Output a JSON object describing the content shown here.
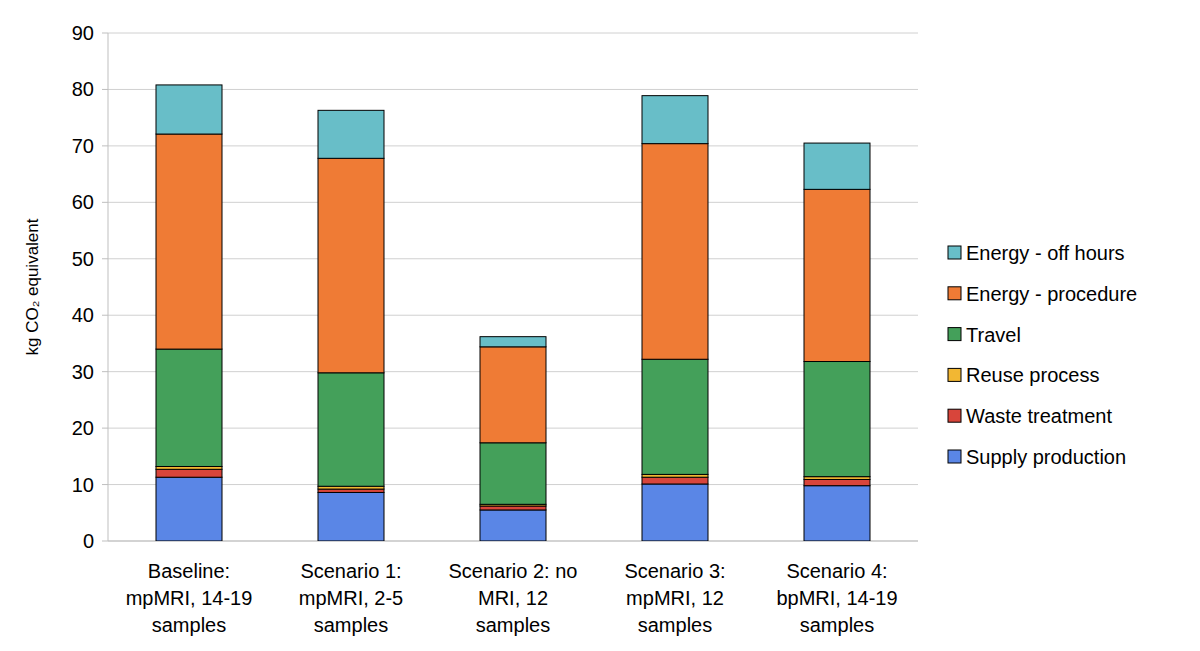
{
  "chart_data": {
    "type": "bar",
    "stacked": true,
    "grid": true,
    "legend": "right",
    "ylabel": "kg CO₂ equivalent",
    "categories": [
      "Baseline: mpMRI, 14-19 samples",
      "Scenario 1: mpMRI, 2-5 samples",
      "Scenario 2: no MRI, 12 samples",
      "Scenario 3: mpMRI, 12 samples",
      "Scenario 4: bpMRI, 14-19 samples"
    ],
    "ylim": [
      0,
      90
    ],
    "yticks": [
      0,
      10,
      20,
      30,
      40,
      50,
      60,
      70,
      80,
      90
    ],
    "series": [
      {
        "name": "Supply production",
        "color": "#5a86e6",
        "values": [
          11.3,
          8.6,
          5.5,
          10.1,
          9.8
        ]
      },
      {
        "name": "Waste treatment",
        "color": "#d8453b",
        "values": [
          1.4,
          0.6,
          0.7,
          1.2,
          1.1
        ]
      },
      {
        "name": "Reuse process",
        "color": "#f2b733",
        "values": [
          0.5,
          0.5,
          0.3,
          0.5,
          0.5
        ]
      },
      {
        "name": "Travel",
        "color": "#44a05a",
        "values": [
          20.8,
          20.1,
          10.9,
          20.4,
          20.4
        ]
      },
      {
        "name": "Energy - procedure",
        "color": "#ef7b35",
        "values": [
          38.1,
          38.0,
          17.0,
          38.2,
          30.5
        ]
      },
      {
        "name": "Energy - off hours",
        "color": "#68bec8",
        "values": [
          8.7,
          8.5,
          1.8,
          8.5,
          8.2
        ]
      }
    ]
  }
}
